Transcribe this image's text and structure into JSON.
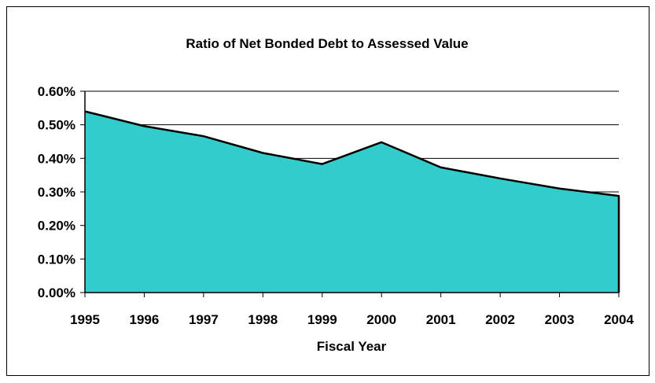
{
  "chart_data": {
    "type": "area",
    "title": "Ratio of Net Bonded Debt to Assessed Value",
    "xlabel": "Fiscal Year",
    "ylabel": "",
    "categories": [
      "1995",
      "1996",
      "1997",
      "1998",
      "1999",
      "2000",
      "2001",
      "2002",
      "2003",
      "2004"
    ],
    "series": [
      {
        "values": [
          0.54,
          0.496,
          0.466,
          0.416,
          0.383,
          0.448,
          0.373,
          0.34,
          0.31,
          0.288
        ]
      }
    ],
    "ylim": [
      0,
      0.6
    ],
    "y_ticks": [
      "0.00%",
      "0.10%",
      "0.20%",
      "0.30%",
      "0.40%",
      "0.50%",
      "0.60%"
    ],
    "grid": true,
    "legend": "none",
    "fill_color": "#33CCCC",
    "line_color": "#000000"
  }
}
